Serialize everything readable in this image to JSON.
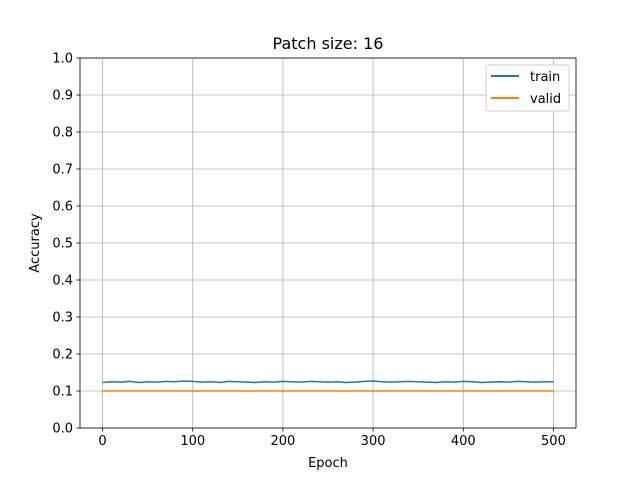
{
  "chart_data": {
    "type": "line",
    "title": "Patch size: 16",
    "xlabel": "Epoch",
    "ylabel": "Accuracy",
    "xlim": [
      -25,
      525
    ],
    "ylim": [
      0,
      1
    ],
    "xticks": [
      0,
      100,
      200,
      300,
      400,
      500
    ],
    "xtick_labels": [
      "0",
      "100",
      "200",
      "300",
      "400",
      "500"
    ],
    "yticks": [
      0,
      0.1,
      0.2,
      0.3,
      0.4,
      0.5,
      0.6,
      0.7,
      0.8,
      0.9,
      1.0
    ],
    "ytick_labels": [
      "0.0",
      "0.1",
      "0.2",
      "0.3",
      "0.4",
      "0.5",
      "0.6",
      "0.7",
      "0.8",
      "0.9",
      "1.0"
    ],
    "grid": true,
    "legend_position": "top-right",
    "series": [
      {
        "name": "train",
        "color": "#1f77b4",
        "x": [
          0,
          10,
          20,
          30,
          40,
          50,
          60,
          70,
          80,
          90,
          100,
          110,
          120,
          130,
          140,
          150,
          160,
          170,
          180,
          190,
          200,
          210,
          220,
          230,
          240,
          250,
          260,
          270,
          280,
          290,
          300,
          310,
          320,
          330,
          340,
          350,
          360,
          370,
          380,
          390,
          400,
          410,
          420,
          430,
          440,
          450,
          460,
          470,
          480,
          490,
          500
        ],
        "y": [
          0.123,
          0.125,
          0.124,
          0.126,
          0.123,
          0.125,
          0.124,
          0.126,
          0.125,
          0.127,
          0.126,
          0.124,
          0.125,
          0.123,
          0.126,
          0.125,
          0.124,
          0.123,
          0.125,
          0.124,
          0.126,
          0.125,
          0.124,
          0.126,
          0.125,
          0.124,
          0.125,
          0.123,
          0.124,
          0.126,
          0.127,
          0.125,
          0.124,
          0.125,
          0.126,
          0.125,
          0.124,
          0.123,
          0.125,
          0.124,
          0.126,
          0.125,
          0.123,
          0.124,
          0.125,
          0.124,
          0.126,
          0.125,
          0.124,
          0.125,
          0.125
        ]
      },
      {
        "name": "valid",
        "color": "#ff7f0e",
        "x": [
          0,
          500
        ],
        "y": [
          0.1,
          0.1
        ]
      }
    ]
  }
}
